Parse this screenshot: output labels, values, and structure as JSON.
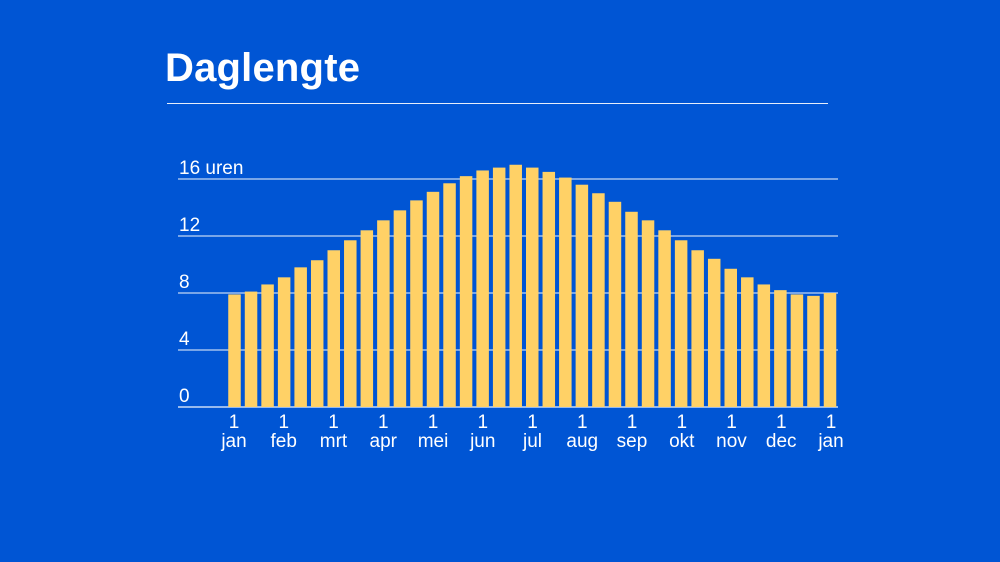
{
  "colors": {
    "background": "#0055d4",
    "bar": "#ffd166",
    "text": "#ffffff",
    "grid": "#ffffff"
  },
  "chart_data": {
    "type": "bar",
    "title": "Daglengte",
    "ylabel": "",
    "xlabel": "",
    "y_unit_label": "uren",
    "ylim": [
      0,
      16
    ],
    "y_ticks": [
      0,
      4,
      8,
      12,
      16
    ],
    "grid": true,
    "month_ticks": [
      {
        "day": "1",
        "month": "jan"
      },
      {
        "day": "1",
        "month": "feb"
      },
      {
        "day": "1",
        "month": "mrt"
      },
      {
        "day": "1",
        "month": "apr"
      },
      {
        "day": "1",
        "month": "mei"
      },
      {
        "day": "1",
        "month": "jun"
      },
      {
        "day": "1",
        "month": "jul"
      },
      {
        "day": "1",
        "month": "aug"
      },
      {
        "day": "1",
        "month": "sep"
      },
      {
        "day": "1",
        "month": "okt"
      },
      {
        "day": "1",
        "month": "nov"
      },
      {
        "day": "1",
        "month": "dec"
      },
      {
        "day": "1",
        "month": "jan"
      }
    ],
    "values": [
      7.9,
      8.1,
      8.6,
      9.1,
      9.8,
      10.3,
      11.0,
      11.7,
      12.4,
      13.1,
      13.8,
      14.5,
      15.1,
      15.7,
      16.2,
      16.6,
      16.8,
      17.0,
      16.8,
      16.5,
      16.1,
      15.6,
      15.0,
      14.4,
      13.7,
      13.1,
      12.4,
      11.7,
      11.0,
      10.4,
      9.7,
      9.1,
      8.6,
      8.2,
      7.9,
      7.8,
      8.0
    ]
  }
}
